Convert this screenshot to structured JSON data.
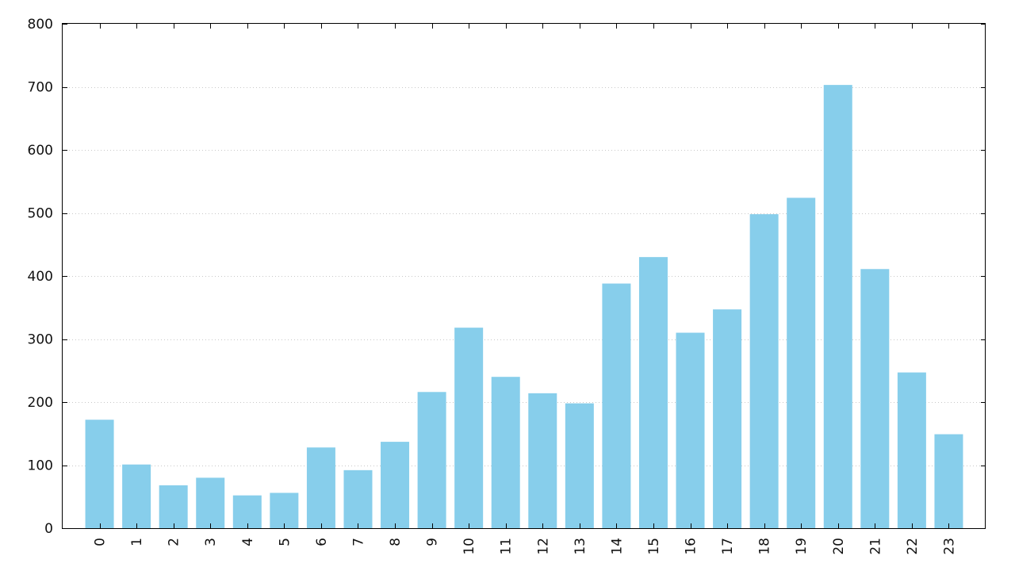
{
  "chart_data": {
    "type": "bar",
    "categories": [
      "0",
      "1",
      "2",
      "3",
      "4",
      "5",
      "6",
      "7",
      "8",
      "9",
      "10",
      "11",
      "12",
      "13",
      "14",
      "15",
      "16",
      "17",
      "18",
      "19",
      "20",
      "21",
      "22",
      "23"
    ],
    "values": [
      172,
      101,
      68,
      80,
      52,
      56,
      128,
      92,
      137,
      216,
      318,
      240,
      214,
      198,
      388,
      430,
      310,
      347,
      498,
      524,
      703,
      411,
      247,
      149
    ],
    "title": "",
    "xlabel": "",
    "ylabel": "",
    "ylim": [
      0,
      800
    ],
    "yticks": [
      "0",
      "100",
      "200",
      "300",
      "400",
      "500",
      "600",
      "700",
      "800"
    ],
    "grid": "horizontal dotted",
    "legend": "none",
    "bar_color": "#87ceeb"
  }
}
